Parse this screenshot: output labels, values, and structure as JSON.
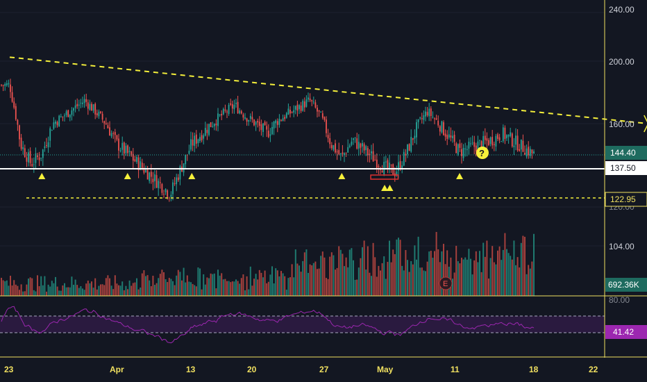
{
  "colors": {
    "background": "#131722",
    "up": "#26a69a",
    "down": "#ef5350",
    "trendline": "#f5f03b",
    "support": "#ffffff",
    "rsi": "#9c27b0",
    "rsi_band": "#2a1a3f",
    "axis_border": "#f0e060",
    "grid": "#1e2230"
  },
  "price_axis": {
    "ticks": [
      "240.00",
      "200.00",
      "160.00",
      "120.00",
      "104.00"
    ],
    "current_price": "144.40",
    "support_level": "137.50",
    "dashed_level": "122.95",
    "volume_value": "692.36K"
  },
  "rsi_axis": {
    "top_tick": "80.00",
    "value": "41.42"
  },
  "time_axis": {
    "labels": [
      "23",
      "Apr",
      "13",
      "20",
      "27",
      "May",
      "11",
      "18",
      "22"
    ]
  },
  "markers": {
    "question": "?",
    "earnings": "E"
  },
  "chart_data": [
    {
      "type": "candlestick",
      "title": "",
      "price_range": [
        100,
        240
      ],
      "x_range": [
        "Mar 23",
        "May 22"
      ],
      "close_path": [
        [
          "Mar 23",
          185
        ],
        [
          "Mar 24",
          150
        ],
        [
          "Mar 25",
          140
        ],
        [
          "Mar 26",
          145
        ],
        [
          "Mar 27",
          160
        ],
        [
          "Mar 30",
          175
        ],
        [
          "Mar 31",
          168
        ],
        [
          "Apr 1",
          160
        ],
        [
          "Apr 2",
          150
        ],
        [
          "Apr 3",
          145
        ],
        [
          "Apr 6",
          130
        ],
        [
          "Apr 7",
          125
        ],
        [
          "Apr 8",
          138
        ],
        [
          "Apr 9",
          150
        ],
        [
          "Apr 13",
          172
        ],
        [
          "Apr 14",
          165
        ],
        [
          "Apr 15",
          160
        ],
        [
          "Apr 16",
          155
        ],
        [
          "Apr 17",
          162
        ],
        [
          "Apr 20",
          175
        ],
        [
          "Apr 21",
          165
        ],
        [
          "Apr 22",
          150
        ],
        [
          "Apr 23",
          143
        ],
        [
          "Apr 24",
          152
        ],
        [
          "Apr 27",
          138
        ],
        [
          "Apr 28",
          136
        ],
        [
          "Apr 29",
          145
        ],
        [
          "Apr 30",
          158
        ],
        [
          "May 1",
          168
        ],
        [
          "May 4",
          146
        ],
        [
          "May 5",
          148
        ],
        [
          "May 6",
          150
        ],
        [
          "May 7",
          152
        ],
        [
          "May 8",
          155
        ],
        [
          "May 11",
          144.4
        ]
      ],
      "annotations": {
        "trendline": [
          [
            "Mar 23",
            203
          ],
          [
            "May 22",
            160
          ]
        ],
        "support": 137.5,
        "dashed_support": 122.95,
        "support_triangles": [
          "Mar 26",
          "Apr 3",
          "Apr 9",
          "Apr 23",
          "Apr 27",
          "Apr 28",
          "May 4"
        ],
        "red_box": [
          "Apr 27",
          "Apr 28"
        ],
        "question_marker": "May 13"
      }
    },
    {
      "type": "bar",
      "title": "",
      "series": [
        {
          "name": "",
          "last_value": 692360
        }
      ],
      "note": "volume histogram, colored by candle direction"
    },
    {
      "type": "line",
      "title": "",
      "ylim": [
        20,
        80
      ],
      "bands": [
        70,
        30
      ],
      "last_value": 41.42
    }
  ]
}
